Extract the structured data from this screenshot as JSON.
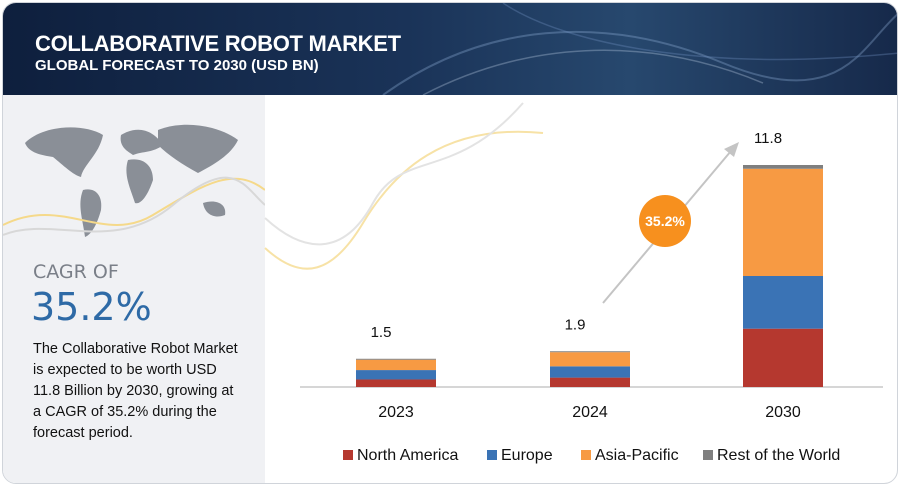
{
  "header": {
    "title": "COLLABORATIVE ROBOT MARKET",
    "subtitle": "GLOBAL FORECAST TO 2030 (USD BN)"
  },
  "summary": {
    "cagr_label": "CAGR OF",
    "cagr_value": "35.2%",
    "description": "The Collaborative Robot Market is expected to be worth USD  11.8 Billion by 2030, growing at a CAGR of 35.2% during the forecast period."
  },
  "chart_data": {
    "type": "stacked-bar",
    "categories": [
      "2023",
      "2024",
      "2030"
    ],
    "series": [
      {
        "name": "North America",
        "color": "#b5382f",
        "values": [
          0.4,
          0.5,
          3.1
        ]
      },
      {
        "name": "Europe",
        "color": "#3a73b5",
        "values": [
          0.5,
          0.6,
          2.8
        ]
      },
      {
        "name": "Asia-Pacific",
        "color": "#f79a43",
        "values": [
          0.55,
          0.75,
          5.7
        ]
      },
      {
        "name": "Rest of the World",
        "color": "#7f7f7f",
        "values": [
          0.05,
          0.05,
          0.2
        ]
      }
    ],
    "totals": [
      1.5,
      1.9,
      11.8
    ],
    "annotation": "35.2%"
  }
}
